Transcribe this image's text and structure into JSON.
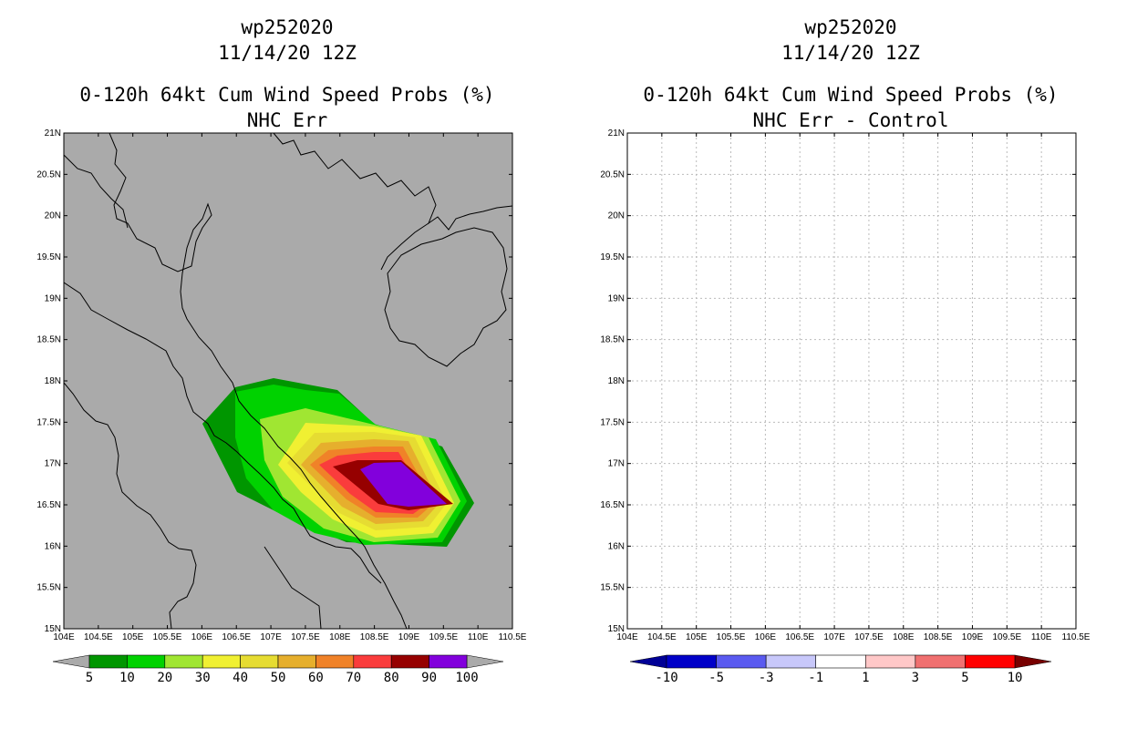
{
  "left_panel": {
    "title_lines": [
      "wp252020",
      "11/14/20 12Z",
      "0-120h 64kt Cum Wind Speed Probs (%)",
      "NHC Err"
    ],
    "colorbar": {
      "colors": [
        "#009600",
        "#00d200",
        "#a0e632",
        "#f0f032",
        "#e6dc32",
        "#e6af2d",
        "#f08228",
        "#fa3c3c",
        "#960000",
        "#8200dc"
      ],
      "labels": [
        "5",
        "10",
        "20",
        "30",
        "40",
        "50",
        "60",
        "70",
        "80",
        "90",
        "100"
      ],
      "arrow_color": "#aaaaaa"
    },
    "background": "#aaaaaa"
  },
  "right_panel": {
    "title_lines": [
      "wp252020",
      "11/14/20 12Z",
      "0-120h 64kt Cum Wind Speed Probs (%)",
      "NHC Err - Control"
    ],
    "colorbar": {
      "colors": [
        "#0000c8",
        "#5a5af0",
        "#c8c8fa",
        "#ffffff",
        "#ffc8c8",
        "#f07070",
        "#ff0000"
      ],
      "labels": [
        "-10",
        "-5",
        "-3",
        "-1",
        "1",
        "3",
        "5",
        "10"
      ],
      "left_arrow": "#000096",
      "right_arrow": "#780000"
    },
    "background": "#ffffff"
  },
  "axes": {
    "lon_labels": [
      "104E",
      "104.5E",
      "105E",
      "105.5E",
      "106E",
      "106.5E",
      "107E",
      "107.5E",
      "108E",
      "108.5E",
      "109E",
      "109.5E",
      "110E",
      "110.5E"
    ],
    "lat_labels": [
      "15N",
      "15.5N",
      "16N",
      "16.5N",
      "17N",
      "17.5N",
      "18N",
      "18.5N",
      "19N",
      "19.5N",
      "20N",
      "20.5N",
      "21N"
    ]
  },
  "map_features": [
    "coastline",
    "country-borders",
    "wind-probability-contours"
  ]
}
